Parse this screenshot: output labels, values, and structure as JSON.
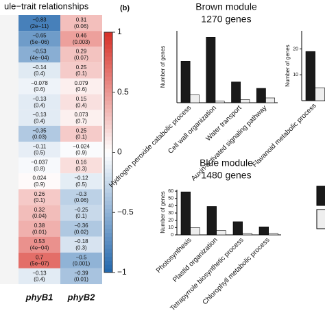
{
  "panel_label": "(b)",
  "chart_data": [
    {
      "type": "heatmap",
      "title": "ule−trait relationships",
      "columns": [
        "phyB1",
        "phyB2"
      ],
      "values": [
        [
          -0.83,
          0.31
        ],
        [
          -0.65,
          0.46
        ],
        [
          -0.53,
          0.29
        ],
        [
          -0.14,
          0.25
        ],
        [
          -0.078,
          0.079
        ],
        [
          -0.13,
          0.15
        ],
        [
          -0.13,
          0.073
        ],
        [
          -0.35,
          0.25
        ],
        [
          -0.11,
          -0.024
        ],
        [
          -0.037,
          0.16
        ],
        [
          0.024,
          -0.12
        ],
        [
          0.26,
          -0.3
        ],
        [
          0.32,
          -0.25
        ],
        [
          0.38,
          -0.36
        ],
        [
          0.53,
          -0.18
        ],
        [
          0.7,
          -0.5
        ],
        [
          -0.13,
          -0.39
        ]
      ],
      "value_labels": [
        [
          "−0.83",
          "0.31"
        ],
        [
          "−0.65",
          "0.46"
        ],
        [
          "−0.53",
          "0.29"
        ],
        [
          "−0.14",
          "0.25"
        ],
        [
          "−0.078",
          "0.079"
        ],
        [
          "−0.13",
          "0.15"
        ],
        [
          "−0.13",
          "0.073"
        ],
        [
          "−0.35",
          "0.25"
        ],
        [
          "−0.11",
          "−0.024"
        ],
        [
          "−0.037",
          "0.16"
        ],
        [
          "0.024",
          "−0.12"
        ],
        [
          "0.26",
          "−0.3"
        ],
        [
          "0.32",
          "−0.25"
        ],
        [
          "0.38",
          "−0.36"
        ],
        [
          "0.53",
          "−0.18"
        ],
        [
          "0.7",
          "−0.5"
        ],
        [
          "−0.13",
          "−0.39"
        ]
      ],
      "p_labels": [
        [
          "(2e−11)",
          "(0.06)"
        ],
        [
          "(5e−06)",
          "(0.003)"
        ],
        [
          "(4e−04)",
          "(0.07)"
        ],
        [
          "(0.4)",
          "(0.1)"
        ],
        [
          "(0.6)",
          "(0.6)"
        ],
        [
          "(0.4)",
          "(0.4)"
        ],
        [
          "(0.4)",
          "(0.7)"
        ],
        [
          "(0.03)",
          "(0.1)"
        ],
        [
          "(0.5)",
          "(0.9)"
        ],
        [
          "(0.8)",
          "(0.3)"
        ],
        [
          "(0.9)",
          "(0.5)"
        ],
        [
          "(0.1)",
          "(0.06)"
        ],
        [
          "(0.04)",
          "(0.1)"
        ],
        [
          "(0.01)",
          "(0.02)"
        ],
        [
          "(4e−04)",
          "(0.3)"
        ],
        [
          "(5e−07)",
          "(0.001)"
        ],
        [
          "(0.4)",
          "(0.01)"
        ]
      ],
      "colorbar_lim": [
        -1,
        1
      ],
      "colorbar_ticks": [
        1,
        0.5,
        0,
        {
          "value": -0.5,
          "label": "−0.5"
        },
        {
          "value": -1,
          "label": "−1"
        }
      ]
    },
    {
      "type": "bar",
      "title": "Brown module",
      "subtitle": "1270 genes",
      "ylabel": "Number of genes",
      "categories": [
        "Hydrogen peroxide catabolic process",
        "Cell wall organization",
        "Water transport",
        "Auxin-activated signaling pathway"
      ],
      "series": [
        {
          "color": "#1a1a1a",
          "values": [
            26,
            41,
            13,
            9
          ]
        },
        {
          "color": "#eeeeee",
          "values": [
            5,
            1,
            2,
            3
          ]
        }
      ],
      "ylim": [
        0,
        45
      ]
    },
    {
      "type": "bar",
      "title": "Blue module",
      "subtitle": "1480 genes",
      "ylabel": "Number of genes",
      "categories": [
        "Photosynthesis",
        "Plastid organization",
        "Tetrapyrrole biosynthetic process",
        "Chlorophyll metabolic process"
      ],
      "series": [
        {
          "color": "#1a1a1a",
          "values": [
            59,
            39,
            18,
            11
          ]
        },
        {
          "color": "#eeeeee",
          "values": [
            10,
            6,
            2,
            2
          ]
        }
      ],
      "ylim": [
        0,
        62
      ],
      "yticks": [
        0,
        10,
        20,
        30,
        40,
        50,
        60
      ]
    },
    {
      "type": "bar",
      "ylabel": "Number of genes",
      "categories": [
        "Flavanoid metabolic process"
      ],
      "series": [
        {
          "color": "#1a1a1a",
          "values": [
            19
          ]
        },
        {
          "color": "#eeeeee",
          "values": [
            5
          ]
        }
      ],
      "ylim": [
        0,
        27
      ],
      "yticks": [
        10,
        20
      ]
    }
  ]
}
